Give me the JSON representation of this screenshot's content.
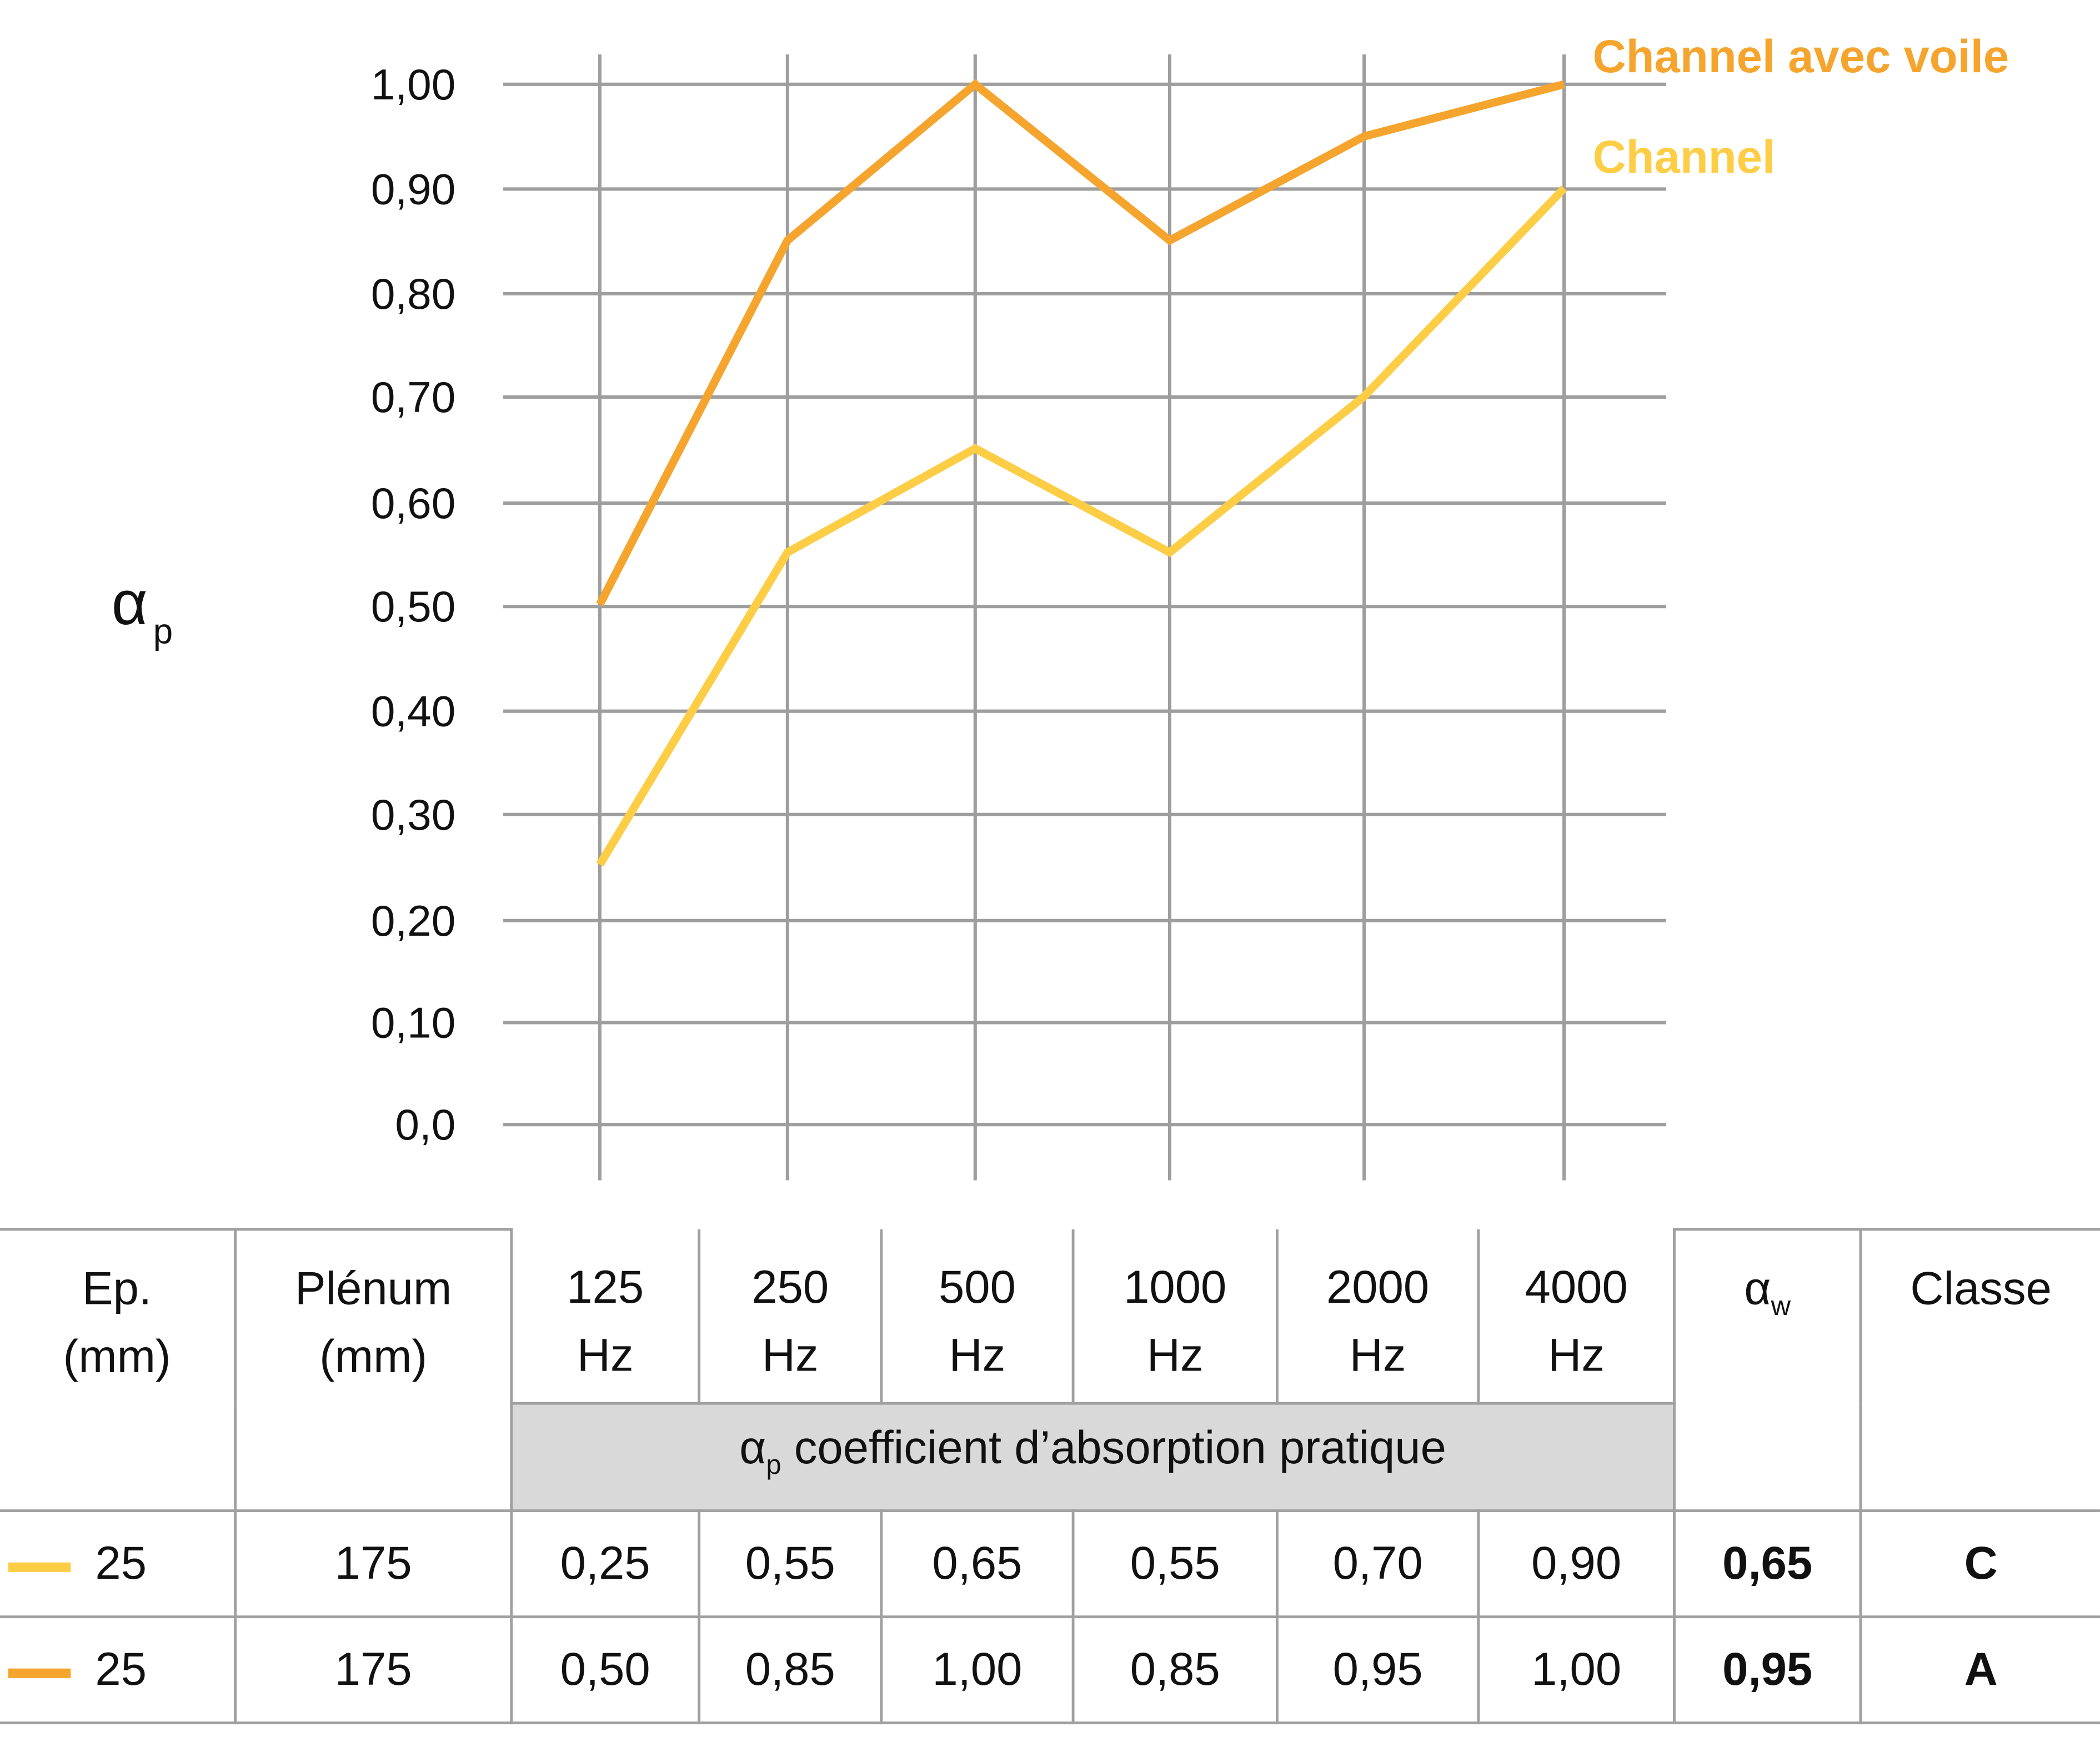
{
  "chart_data": {
    "type": "line",
    "title": "",
    "xlabel": "",
    "ylabel": "αp",
    "ylim": [
      0,
      1.0
    ],
    "categories": [
      "125 Hz",
      "250 Hz",
      "500 Hz",
      "1000 Hz",
      "2000 Hz",
      "4000 Hz"
    ],
    "y_ticks": [
      "1,00",
      "0,90",
      "0,80",
      "0,70",
      "0,60",
      "0,50",
      "0,40",
      "0,30",
      "0,20",
      "0,10",
      "0,0"
    ],
    "grid": true,
    "legend_position": "top-right",
    "series": [
      {
        "name": "Channel avec voile",
        "color": "#F5A52E",
        "values": [
          0.5,
          0.85,
          1.0,
          0.85,
          0.95,
          1.0
        ]
      },
      {
        "name": "Channel",
        "color": "#FDCD45",
        "values": [
          0.25,
          0.55,
          0.65,
          0.55,
          0.7,
          0.9
        ]
      }
    ]
  },
  "axis": {
    "title_main": "α",
    "title_sub": "p",
    "ticks": [
      "1,00",
      "0,90",
      "0,80",
      "0,70",
      "0,60",
      "0,50",
      "0,40",
      "0,30",
      "0,20",
      "0,10",
      "0,0"
    ]
  },
  "legend": {
    "series1": "Channel avec voile",
    "series2": "Channel"
  },
  "table": {
    "headers": {
      "ep": [
        "Ep.",
        "(mm)"
      ],
      "plenum": [
        "Plénum",
        "(mm)"
      ],
      "freqs": [
        {
          "value": "125",
          "unit": "Hz"
        },
        {
          "value": "250",
          "unit": "Hz"
        },
        {
          "value": "500",
          "unit": "Hz"
        },
        {
          "value": "1000",
          "unit": "Hz"
        },
        {
          "value": "2000",
          "unit": "Hz"
        },
        {
          "value": "4000",
          "unit": "Hz"
        }
      ],
      "aw_main": "α",
      "aw_sub": "w",
      "classe": "Classe",
      "band_main": "α",
      "band_sub": "p",
      "band_text": " coefficient d’absorption pratique"
    },
    "rows": [
      {
        "swatch_color": "#FDCD45",
        "ep": "25",
        "plenum": "175",
        "values": [
          "0,25",
          "0,55",
          "0,65",
          "0,55",
          "0,70",
          "0,90"
        ],
        "aw": "0,65",
        "classe": "C"
      },
      {
        "swatch_color": "#F5A52E",
        "ep": "25",
        "plenum": "175",
        "values": [
          "0,50",
          "0,85",
          "1,00",
          "0,85",
          "0,95",
          "1,00"
        ],
        "aw": "0,95",
        "classe": "A"
      }
    ]
  },
  "colors": {
    "grid": "#9e9e9e",
    "series_voile": "#F5A52E",
    "series_channel": "#FDCD45",
    "band": "#d9d9d9"
  }
}
